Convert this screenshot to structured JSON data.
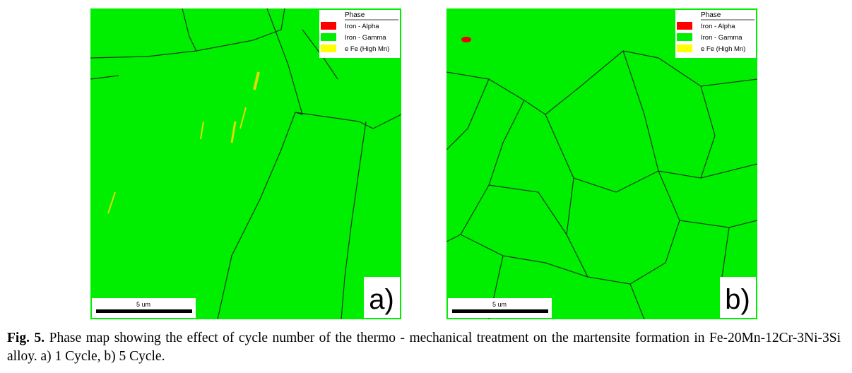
{
  "panels": [
    {
      "legend": {
        "title": "Phase",
        "entries": [
          {
            "name": "Iron - Alpha",
            "color": "#ff0000"
          },
          {
            "name": "Iron - Gamma",
            "color": "#00ee00"
          },
          {
            "name": "e Fe (High Mn)",
            "color": "#ffff00"
          }
        ]
      },
      "scale_label": "5 um",
      "panel_label": "a)"
    },
    {
      "legend": {
        "title": "Phase",
        "entries": [
          {
            "name": "Iron - Alpha",
            "color": "#ff0000"
          },
          {
            "name": "Iron - Gamma",
            "color": "#00ee00"
          },
          {
            "name": "e Fe (High Mn)",
            "color": "#ffff00"
          }
        ]
      },
      "scale_label": "5 um",
      "panel_label": "b)"
    }
  ],
  "caption": {
    "label": "Fig. 5.",
    "text": "Phase map showing the effect of cycle number of the thermo - mechanical treatment on the martensite formation in Fe-20Mn-12Cr-3Ni-3Si alloy. a) 1 Cycle, b) 5 Cycle."
  }
}
